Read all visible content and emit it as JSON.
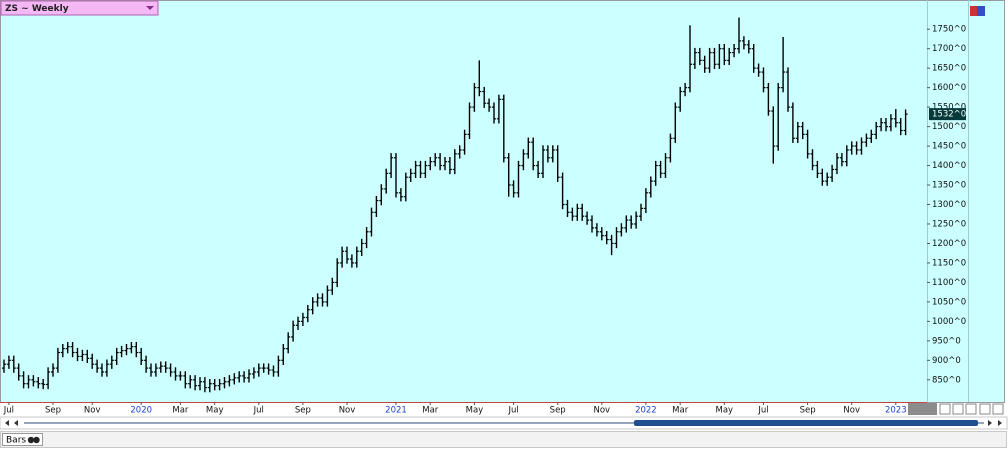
{
  "chart_data": {
    "type": "ohlc",
    "title": "ZS ~ Weekly",
    "color": "#000000",
    "ylim": [
      793,
      1825
    ],
    "yticks": [
      {
        "value": 850,
        "label": "850^0"
      },
      {
        "value": 900,
        "label": "900^0"
      },
      {
        "value": 950,
        "label": "950^0"
      },
      {
        "value": 1000,
        "label": "1000^0"
      },
      {
        "value": 1050,
        "label": "1050^0"
      },
      {
        "value": 1100,
        "label": "1100^0"
      },
      {
        "value": 1150,
        "label": "1150^0"
      },
      {
        "value": 1200,
        "label": "1200^0"
      },
      {
        "value": 1250,
        "label": "1250^0"
      },
      {
        "value": 1300,
        "label": "1300^0"
      },
      {
        "value": 1350,
        "label": "1350^0"
      },
      {
        "value": 1400,
        "label": "1400^0"
      },
      {
        "value": 1450,
        "label": "1450^0"
      },
      {
        "value": 1500,
        "label": "1500^0"
      },
      {
        "value": 1550,
        "label": "1550^0"
      },
      {
        "value": 1600,
        "label": "1600^0"
      },
      {
        "value": 1650,
        "label": "1650^0"
      },
      {
        "value": 1700,
        "label": "1700^0"
      },
      {
        "value": 1750,
        "label": "1750^0"
      }
    ],
    "last_price": {
      "value": 1532,
      "label": "1532^0"
    },
    "categories": [
      null,
      "Jul",
      null,
      null,
      null,
      null,
      null,
      null,
      null,
      null,
      "Sep",
      null,
      null,
      null,
      null,
      null,
      null,
      null,
      "Nov",
      null,
      null,
      null,
      null,
      null,
      null,
      null,
      null,
      null,
      "2020",
      null,
      null,
      null,
      null,
      null,
      null,
      null,
      "Mar",
      null,
      null,
      null,
      null,
      null,
      null,
      "May",
      null,
      null,
      null,
      null,
      null,
      null,
      null,
      null,
      "Jul",
      null,
      null,
      null,
      null,
      null,
      null,
      null,
      null,
      "Sep",
      null,
      null,
      null,
      null,
      null,
      null,
      null,
      null,
      "Nov",
      null,
      null,
      null,
      null,
      null,
      null,
      null,
      null,
      null,
      "2021",
      null,
      null,
      null,
      null,
      null,
      null,
      "Mar",
      null,
      null,
      null,
      null,
      null,
      null,
      null,
      null,
      "May",
      null,
      null,
      null,
      null,
      null,
      null,
      null,
      "Jul",
      null,
      null,
      null,
      null,
      null,
      null,
      null,
      null,
      "Sep",
      null,
      null,
      null,
      null,
      null,
      null,
      null,
      null,
      "Nov",
      null,
      null,
      null,
      null,
      null,
      null,
      null,
      null,
      "2022",
      null,
      null,
      null,
      null,
      null,
      null,
      "Mar",
      null,
      null,
      null,
      null,
      null,
      null,
      null,
      null,
      "May",
      null,
      null,
      null,
      null,
      null,
      null,
      null,
      "Jul",
      null,
      null,
      null,
      null,
      null,
      null,
      null,
      null,
      "Sep",
      null,
      null,
      null,
      null,
      null,
      null,
      null,
      null,
      "Nov",
      null,
      null,
      null,
      null,
      null,
      null,
      null,
      null,
      "2023",
      null,
      null
    ],
    "open": [
      880,
      890,
      900,
      880,
      860,
      840,
      850,
      845,
      840,
      838,
      870,
      880,
      920,
      930,
      935,
      920,
      910,
      915,
      905,
      890,
      880,
      870,
      890,
      900,
      920,
      925,
      930,
      935,
      920,
      900,
      880,
      870,
      880,
      885,
      880,
      870,
      860,
      860,
      840,
      850,
      835,
      845,
      830,
      840,
      835,
      840,
      845,
      850,
      855,
      860,
      855,
      865,
      870,
      880,
      880,
      875,
      870,
      900,
      930,
      960,
      990,
      1000,
      1010,
      1030,
      1050,
      1060,
      1050,
      1080,
      1100,
      1150,
      1180,
      1160,
      1150,
      1180,
      1200,
      1230,
      1280,
      1310,
      1340,
      1380,
      1420,
      1330,
      1320,
      1370,
      1380,
      1400,
      1380,
      1400,
      1410,
      1420,
      1400,
      1410,
      1390,
      1430,
      1440,
      1480,
      1550,
      1600,
      1590,
      1560,
      1550,
      1520,
      1570,
      1420,
      1350,
      1330,
      1400,
      1430,
      1460,
      1400,
      1380,
      1440,
      1420,
      1440,
      1370,
      1300,
      1280,
      1270,
      1290,
      1270,
      1260,
      1240,
      1230,
      1220,
      1210,
      1200,
      1230,
      1240,
      1260,
      1250,
      1270,
      1290,
      1330,
      1360,
      1400,
      1380,
      1420,
      1470,
      1550,
      1590,
      1600,
      1660,
      1690,
      1670,
      1650,
      1690,
      1660,
      1700,
      1670,
      1690,
      1700,
      1720,
      1710,
      1700,
      1650,
      1640,
      1600,
      1540,
      1450,
      1600,
      1640,
      1550,
      1470,
      1500,
      1480,
      1430,
      1400,
      1380,
      1360,
      1370,
      1390,
      1420,
      1410,
      1440,
      1450,
      1440,
      1460,
      1470,
      1480,
      1500,
      1510,
      1500,
      1520,
      1510,
      1490
    ],
    "high": [
      902,
      912,
      912,
      892,
      872,
      862,
      862,
      857,
      852,
      882,
      892,
      932,
      942,
      947,
      947,
      932,
      927,
      927,
      917,
      902,
      892,
      902,
      912,
      932,
      937,
      942,
      947,
      947,
      932,
      912,
      892,
      892,
      897,
      897,
      892,
      882,
      872,
      872,
      862,
      862,
      857,
      857,
      852,
      852,
      852,
      857,
      862,
      867,
      872,
      872,
      877,
      882,
      892,
      892,
      892,
      887,
      912,
      942,
      972,
      1002,
      1012,
      1022,
      1042,
      1062,
      1072,
      1072,
      1092,
      1112,
      1162,
      1192,
      1192,
      1172,
      1192,
      1212,
      1242,
      1292,
      1322,
      1352,
      1392,
      1432,
      1432,
      1342,
      1382,
      1392,
      1412,
      1412,
      1412,
      1422,
      1432,
      1432,
      1422,
      1422,
      1442,
      1452,
      1492,
      1562,
      1612,
      1670,
      1602,
      1572,
      1562,
      1582,
      1582,
      1432,
      1362,
      1412,
      1442,
      1472,
      1472,
      1412,
      1452,
      1452,
      1452,
      1452,
      1382,
      1312,
      1292,
      1302,
      1302,
      1282,
      1272,
      1252,
      1242,
      1232,
      1222,
      1242,
      1252,
      1272,
      1272,
      1282,
      1302,
      1342,
      1372,
      1412,
      1412,
      1432,
      1482,
      1562,
      1602,
      1612,
      1760,
      1702,
      1702,
      1682,
      1702,
      1702,
      1712,
      1712,
      1702,
      1712,
      1780,
      1732,
      1722,
      1712,
      1662,
      1652,
      1612,
      1552,
      1612,
      1730,
      1652,
      1562,
      1512,
      1512,
      1492,
      1442,
      1412,
      1392,
      1382,
      1402,
      1432,
      1432,
      1452,
      1462,
      1462,
      1472,
      1482,
      1492,
      1512,
      1522,
      1522,
      1532,
      1545,
      1522,
      1544
    ],
    "low": [
      868,
      878,
      868,
      848,
      828,
      828,
      833,
      828,
      826,
      826,
      858,
      868,
      908,
      918,
      908,
      898,
      898,
      893,
      878,
      868,
      858,
      858,
      878,
      888,
      908,
      913,
      918,
      908,
      888,
      868,
      858,
      858,
      868,
      868,
      858,
      848,
      848,
      828,
      828,
      823,
      823,
      818,
      818,
      823,
      823,
      828,
      833,
      838,
      843,
      843,
      843,
      853,
      858,
      868,
      863,
      858,
      858,
      888,
      918,
      948,
      978,
      988,
      998,
      1018,
      1038,
      1038,
      1038,
      1068,
      1088,
      1138,
      1148,
      1138,
      1138,
      1168,
      1188,
      1218,
      1268,
      1298,
      1328,
      1368,
      1318,
      1308,
      1308,
      1358,
      1368,
      1368,
      1368,
      1388,
      1398,
      1388,
      1388,
      1378,
      1378,
      1418,
      1428,
      1468,
      1538,
      1578,
      1548,
      1538,
      1508,
      1508,
      1408,
      1320,
      1318,
      1318,
      1388,
      1418,
      1388,
      1368,
      1368,
      1408,
      1408,
      1358,
      1288,
      1268,
      1258,
      1258,
      1258,
      1248,
      1228,
      1218,
      1208,
      1198,
      1170,
      1188,
      1218,
      1228,
      1238,
      1238,
      1258,
      1278,
      1318,
      1348,
      1368,
      1368,
      1408,
      1458,
      1538,
      1578,
      1588,
      1648,
      1658,
      1638,
      1638,
      1648,
      1648,
      1658,
      1658,
      1678,
      1688,
      1698,
      1688,
      1638,
      1628,
      1588,
      1528,
      1405,
      1438,
      1588,
      1538,
      1458,
      1458,
      1468,
      1418,
      1388,
      1368,
      1348,
      1348,
      1358,
      1378,
      1398,
      1398,
      1428,
      1428,
      1428,
      1448,
      1458,
      1468,
      1488,
      1488,
      1488,
      1498,
      1478,
      1478
    ],
    "close": [
      890,
      900,
      880,
      860,
      840,
      850,
      845,
      840,
      838,
      870,
      880,
      920,
      930,
      935,
      920,
      910,
      915,
      905,
      890,
      880,
      870,
      890,
      900,
      920,
      925,
      930,
      935,
      920,
      900,
      880,
      870,
      880,
      885,
      880,
      870,
      860,
      860,
      840,
      850,
      835,
      845,
      830,
      840,
      835,
      840,
      845,
      850,
      855,
      860,
      855,
      865,
      870,
      880,
      880,
      875,
      870,
      900,
      930,
      960,
      990,
      1000,
      1010,
      1030,
      1050,
      1060,
      1050,
      1080,
      1100,
      1150,
      1180,
      1160,
      1150,
      1180,
      1200,
      1230,
      1280,
      1310,
      1340,
      1380,
      1420,
      1330,
      1320,
      1370,
      1380,
      1400,
      1380,
      1400,
      1410,
      1420,
      1400,
      1410,
      1390,
      1430,
      1440,
      1480,
      1550,
      1600,
      1590,
      1560,
      1550,
      1520,
      1570,
      1420,
      1350,
      1330,
      1400,
      1430,
      1460,
      1400,
      1380,
      1440,
      1420,
      1440,
      1370,
      1300,
      1280,
      1270,
      1290,
      1270,
      1260,
      1240,
      1230,
      1220,
      1210,
      1200,
      1230,
      1240,
      1260,
      1250,
      1270,
      1290,
      1330,
      1360,
      1400,
      1380,
      1420,
      1470,
      1550,
      1590,
      1600,
      1660,
      1690,
      1670,
      1650,
      1690,
      1660,
      1700,
      1670,
      1690,
      1700,
      1720,
      1710,
      1700,
      1650,
      1640,
      1600,
      1540,
      1450,
      1600,
      1640,
      1550,
      1470,
      1500,
      1480,
      1430,
      1400,
      1380,
      1360,
      1370,
      1390,
      1420,
      1410,
      1440,
      1450,
      1440,
      1460,
      1470,
      1480,
      1500,
      1510,
      1500,
      1520,
      1510,
      1490,
      1532
    ]
  },
  "ui": {
    "bottom_tab": "Bars"
  }
}
